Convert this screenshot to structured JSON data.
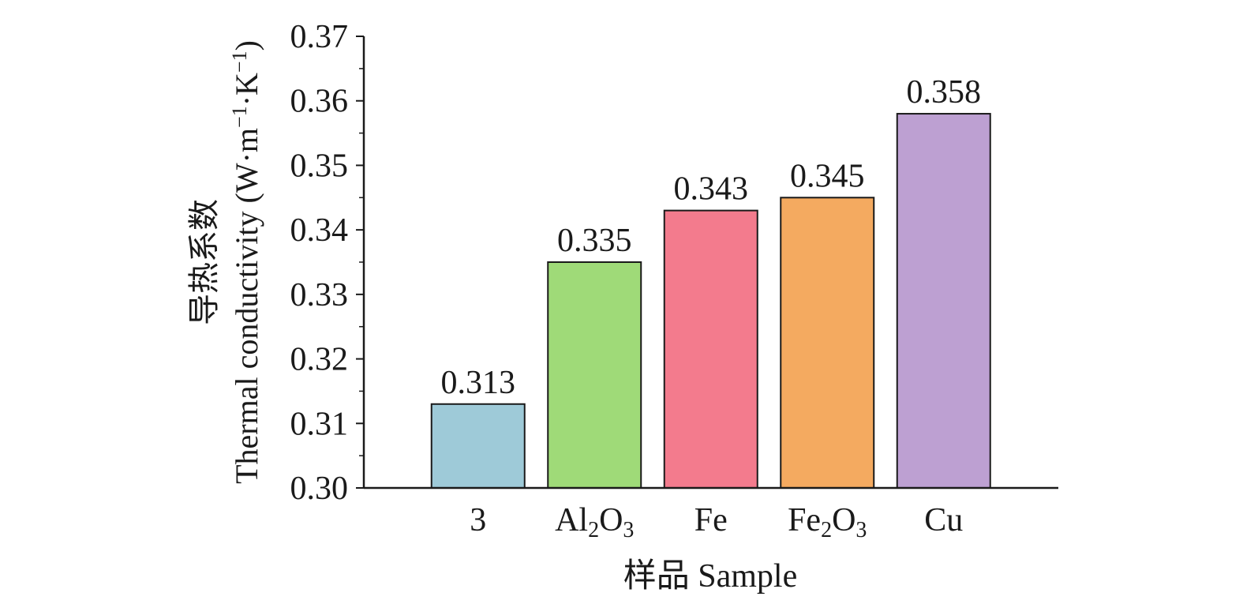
{
  "chart_data": {
    "type": "bar",
    "categories": [
      {
        "base": "3",
        "sub": "",
        "mid": "",
        "sub2": ""
      },
      {
        "base": "Al",
        "sub": "2",
        "mid": "O",
        "sub2": "3"
      },
      {
        "base": "Fe",
        "sub": "",
        "mid": "",
        "sub2": ""
      },
      {
        "base": "Fe",
        "sub": "2",
        "mid": "O",
        "sub2": "3"
      },
      {
        "base": "Cu",
        "sub": "",
        "mid": "",
        "sub2": ""
      }
    ],
    "values": [
      0.313,
      0.335,
      0.343,
      0.345,
      0.358
    ],
    "value_labels": [
      "0.313",
      "0.335",
      "0.343",
      "0.345",
      "0.358"
    ],
    "colors": [
      "#9ecad8",
      "#9fda78",
      "#f37b8d",
      "#f4aa60",
      "#bda0d2"
    ],
    "ylim": [
      0.3,
      0.37
    ],
    "yticks": [
      "0.30",
      "0.31",
      "0.32",
      "0.33",
      "0.34",
      "0.35",
      "0.36",
      "0.37"
    ],
    "xlabel": "样品 Sample",
    "ylabel": {
      "line1": "导热系数",
      "line2_prefix": "Thermal conductivity (W·m",
      "sup1": "−1",
      "mid": "·K",
      "sup2": "−1",
      "suffix": ")"
    },
    "grid": false,
    "legend": "none"
  }
}
